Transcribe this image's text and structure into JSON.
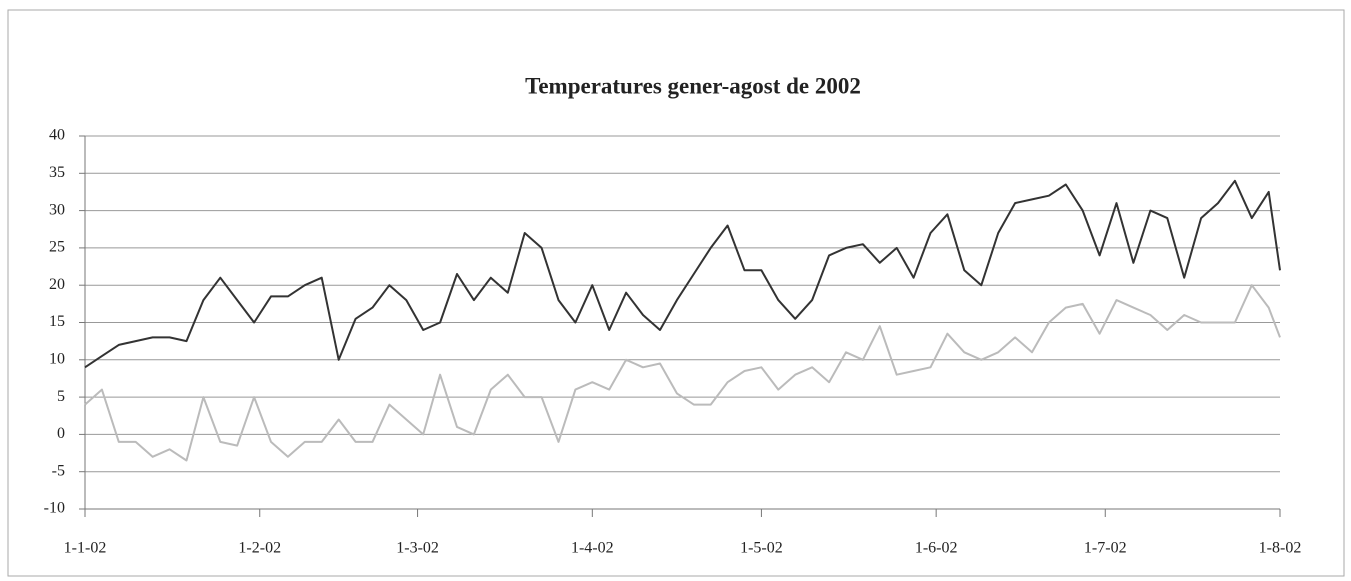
{
  "chart_data": {
    "type": "line",
    "title": "Temperatures gener-agost de 2002",
    "x": [
      "2002-01-01",
      "2002-01-04",
      "2002-01-07",
      "2002-01-10",
      "2002-01-13",
      "2002-01-16",
      "2002-01-19",
      "2002-01-22",
      "2002-01-25",
      "2002-01-28",
      "2002-01-31",
      "2002-02-03",
      "2002-02-06",
      "2002-02-09",
      "2002-02-12",
      "2002-02-15",
      "2002-02-18",
      "2002-02-21",
      "2002-02-24",
      "2002-02-27",
      "2002-03-02",
      "2002-03-05",
      "2002-03-08",
      "2002-03-11",
      "2002-03-14",
      "2002-03-17",
      "2002-03-20",
      "2002-03-23",
      "2002-03-26",
      "2002-03-29",
      "2002-04-01",
      "2002-04-04",
      "2002-04-07",
      "2002-04-10",
      "2002-04-13",
      "2002-04-16",
      "2002-04-19",
      "2002-04-22",
      "2002-04-25",
      "2002-04-28",
      "2002-05-01",
      "2002-05-04",
      "2002-05-07",
      "2002-05-10",
      "2002-05-13",
      "2002-05-16",
      "2002-05-19",
      "2002-05-22",
      "2002-05-25",
      "2002-05-28",
      "2002-05-31",
      "2002-06-03",
      "2002-06-06",
      "2002-06-09",
      "2002-06-12",
      "2002-06-15",
      "2002-06-18",
      "2002-06-21",
      "2002-06-24",
      "2002-06-27",
      "2002-06-30",
      "2002-07-03",
      "2002-07-06",
      "2002-07-09",
      "2002-07-12",
      "2002-07-15",
      "2002-07-18",
      "2002-07-21",
      "2002-07-24",
      "2002-07-27",
      "2002-07-30",
      "2002-08-01"
    ],
    "series": [
      {
        "color": "#333333",
        "values": [
          9,
          10.5,
          12,
          12.5,
          13,
          13,
          12.5,
          18,
          21,
          18,
          15,
          18.5,
          18.5,
          20,
          21,
          10,
          15.5,
          17,
          20,
          18,
          14,
          15,
          21.5,
          18,
          21,
          19,
          27,
          25,
          18,
          15,
          20,
          14,
          19,
          16,
          14,
          18,
          21.5,
          25,
          28,
          22,
          22,
          18,
          15.5,
          18,
          24,
          25,
          25.5,
          23,
          25,
          21,
          27,
          29.5,
          22,
          20,
          27,
          31,
          31.5,
          32,
          33.5,
          30,
          24,
          31,
          23,
          30,
          29,
          21,
          29,
          31,
          34,
          29,
          32.5,
          22
        ]
      },
      {
        "color": "#bbbbbb",
        "values": [
          4,
          6,
          -1,
          -1,
          -3,
          -2,
          -3.5,
          5,
          -1,
          -1.5,
          5,
          -1,
          -3,
          -1,
          -1,
          2,
          -1,
          -1,
          4,
          2,
          0,
          8,
          1,
          0,
          6,
          8,
          5,
          5,
          -1,
          6,
          7,
          6,
          10,
          9,
          9.5,
          5.5,
          4,
          4,
          7,
          8.5,
          9,
          6,
          8,
          9,
          7,
          11,
          10,
          14.5,
          8,
          8.5,
          9,
          13.5,
          11,
          10,
          11,
          13,
          11,
          15,
          17,
          17.5,
          13.5,
          18,
          17,
          16,
          14,
          16,
          15,
          15,
          15,
          20,
          17,
          13
        ]
      }
    ],
    "xlim": [
      "2002-01-01",
      "2002-08-01"
    ],
    "xticks": [
      {
        "value": "2002-01-01",
        "label": "1-1-02"
      },
      {
        "value": "2002-02-01",
        "label": "1-2-02"
      },
      {
        "value": "2002-03-01",
        "label": "1-3-02"
      },
      {
        "value": "2002-04-01",
        "label": "1-4-02"
      },
      {
        "value": "2002-05-01",
        "label": "1-5-02"
      },
      {
        "value": "2002-06-01",
        "label": "1-6-02"
      },
      {
        "value": "2002-07-01",
        "label": "1-7-02"
      },
      {
        "value": "2002-08-01",
        "label": "1-8-02"
      }
    ],
    "ylim": [
      -10,
      40
    ],
    "yticks": [
      -10,
      -5,
      0,
      5,
      10,
      15,
      20,
      25,
      30,
      35,
      40
    ],
    "grid": true
  }
}
